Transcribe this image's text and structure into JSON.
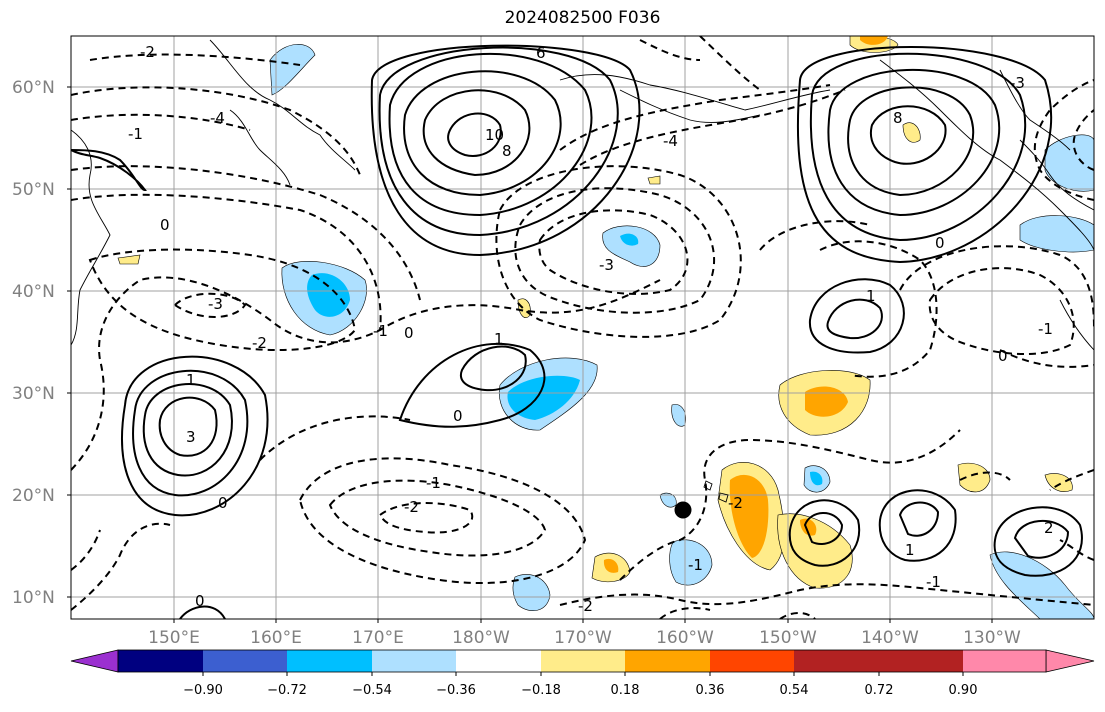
{
  "title": "2024082500 F036",
  "map": {
    "latitude_labels": [
      "60°N",
      "50°N",
      "40°N",
      "30°N",
      "20°N",
      "10°N"
    ],
    "longitude_labels": [
      "150°E",
      "160°E",
      "170°E",
      "180°W",
      "170°W",
      "160°W",
      "150°W",
      "140°W",
      "130°W"
    ],
    "contour_labels": [
      "-2",
      "-1",
      "-4",
      "-3",
      "-2",
      "-1",
      "0",
      "0",
      "1",
      "0",
      "1",
      "3",
      "0",
      "-2",
      "-1",
      "0",
      "6",
      "10",
      "8",
      "-2",
      "-3",
      "8",
      "1",
      "0",
      "-1",
      "2",
      "1",
      "-2",
      "-1",
      "0",
      "-4",
      "-3",
      "-1"
    ],
    "marker": "station-dot"
  },
  "colorbar": {
    "ticks": [
      "−0.90",
      "−0.72",
      "−0.54",
      "−0.36",
      "−0.18",
      "0.18",
      "0.36",
      "0.54",
      "0.72",
      "0.90"
    ],
    "colors": [
      "#9b30d0",
      "#000080",
      "#3c5fd0",
      "#00bfff",
      "#aee0ff",
      "#ffffff",
      "#ffec8a",
      "#ffa500",
      "#ff4500",
      "#b22222",
      "#ff88aa"
    ]
  }
}
